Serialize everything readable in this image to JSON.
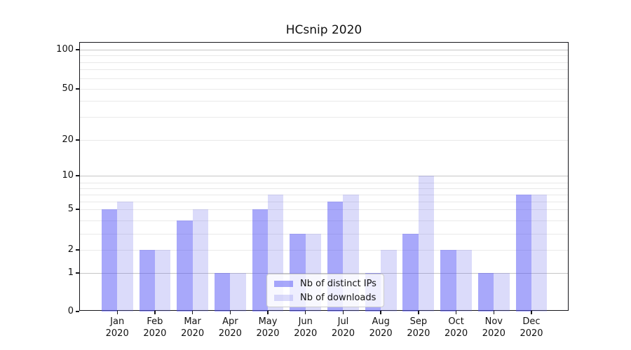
{
  "title": "HCsnip 2020",
  "legend": {
    "items": [
      {
        "label": "Nb of distinct IPs"
      },
      {
        "label": "Nb of downloads"
      }
    ]
  },
  "colors": {
    "bar_distinct_ips": "rgba(81,81,245,0.50)",
    "bar_downloads": "rgba(112,112,236,0.25)",
    "bar_distinct_ips_hex": "#a8a8fa",
    "bar_downloads_hex": "#dbdbfa",
    "grid_major": "#c6c6c6",
    "grid_minor": "#e9e9e9",
    "spine": "#15151a",
    "text": "#111111"
  },
  "axes": {
    "y_ticks": [
      {
        "label": "100",
        "value": 100
      },
      {
        "label": "50",
        "value": 50
      },
      {
        "label": "20",
        "value": 20
      },
      {
        "label": "10",
        "value": 10
      },
      {
        "label": "5",
        "value": 5
      },
      {
        "label": "2",
        "value": 2
      },
      {
        "label": "1",
        "value": 1
      },
      {
        "label": "0",
        "value": 0
      }
    ],
    "y_gridlines_major": [
      1,
      10,
      100
    ],
    "y_gridlines_minor": [
      2,
      3,
      4,
      5,
      6,
      7,
      8,
      9,
      20,
      30,
      40,
      50,
      60,
      70,
      80,
      90
    ],
    "x_tick_month_labels": [
      "Jan",
      "Feb",
      "Mar",
      "Apr",
      "May",
      "Jun",
      "Jul",
      "Aug",
      "Sep",
      "Oct",
      "Nov",
      "Dec"
    ],
    "x_tick_year_label": "2020"
  },
  "chart_data": {
    "type": "bar",
    "title": "HCsnip 2020",
    "categories": [
      "Jan 2020",
      "Feb 2020",
      "Mar 2020",
      "Apr 2020",
      "May 2020",
      "Jun 2020",
      "Jul 2020",
      "Aug 2020",
      "Sep 2020",
      "Oct 2020",
      "Nov 2020",
      "Dec 2020"
    ],
    "series": [
      {
        "name": "Nb of distinct IPs",
        "values": [
          5,
          2,
          4,
          1,
          5,
          3,
          6,
          1,
          3,
          2,
          1,
          7
        ]
      },
      {
        "name": "Nb of downloads",
        "values": [
          6,
          2,
          5,
          1,
          7,
          3,
          7,
          2,
          10,
          2,
          1,
          7
        ]
      }
    ],
    "xlabel": "",
    "ylabel": "",
    "yscale": "log-like (asinh), labeled ticks at 0,1,2,5,10,20,50,100",
    "ylim": [
      0,
      113
    ],
    "grid": true,
    "legend_position": "lower-center inside axes"
  }
}
